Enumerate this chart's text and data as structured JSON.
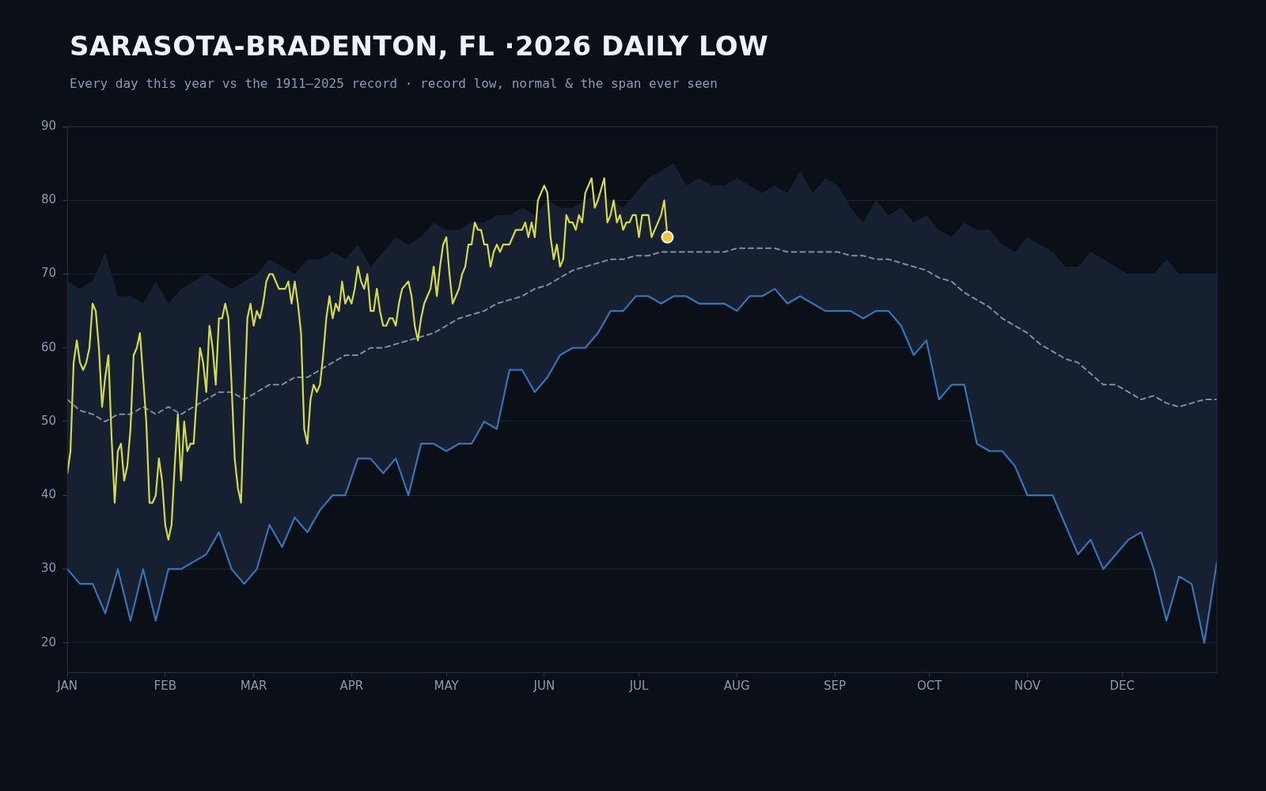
{
  "chart_data": {
    "type": "line",
    "title": "SARASOTA-BRADENTON, FL ·2026 DAILY LOW",
    "subtitle": "Every day this year vs the 1911–2025 record · record low, normal & the span ever seen",
    "xlim": [
      "2026-01-01",
      "2026-12-31"
    ],
    "xticks": [
      {
        "value": "2026-01-01",
        "label": "JAN"
      },
      {
        "value": "2026-02-01",
        "label": "FEB"
      },
      {
        "value": "2026-03-01",
        "label": "MAR"
      },
      {
        "value": "2026-04-01",
        "label": "APR"
      },
      {
        "value": "2026-05-01",
        "label": "MAY"
      },
      {
        "value": "2026-06-01",
        "label": "JUN"
      },
      {
        "value": "2026-07-01",
        "label": "JUL"
      },
      {
        "value": "2026-08-01",
        "label": "AUG"
      },
      {
        "value": "2026-09-01",
        "label": "SEP"
      },
      {
        "value": "2026-10-01",
        "label": "OCT"
      },
      {
        "value": "2026-11-01",
        "label": "NOV"
      },
      {
        "value": "2026-12-01",
        "label": "DEC"
      }
    ],
    "ylim": [
      16,
      90
    ],
    "yticks": [
      20,
      30,
      40,
      50,
      60,
      70,
      80,
      90
    ],
    "grid": "y",
    "legend": false,
    "marker": "none",
    "x": [
      "2026-01-01",
      "2026-01-05",
      "2026-01-09",
      "2026-01-13",
      "2026-01-17",
      "2026-01-21",
      "2026-01-25",
      "2026-01-29",
      "2026-02-02",
      "2026-02-06",
      "2026-02-10",
      "2026-02-14",
      "2026-02-18",
      "2026-02-22",
      "2026-02-26",
      "2026-03-02",
      "2026-03-06",
      "2026-03-10",
      "2026-03-14",
      "2026-03-18",
      "2026-03-22",
      "2026-03-26",
      "2026-03-30",
      "2026-04-03",
      "2026-04-07",
      "2026-04-11",
      "2026-04-15",
      "2026-04-19",
      "2026-04-23",
      "2026-04-27",
      "2026-05-01",
      "2026-05-05",
      "2026-05-09",
      "2026-05-13",
      "2026-05-17",
      "2026-05-21",
      "2026-05-25",
      "2026-05-29",
      "2026-06-02",
      "2026-06-06",
      "2026-06-10",
      "2026-06-14",
      "2026-06-18",
      "2026-06-22",
      "2026-06-26",
      "2026-06-30",
      "2026-07-04",
      "2026-07-08",
      "2026-07-12",
      "2026-07-16",
      "2026-07-20",
      "2026-07-24",
      "2026-07-28",
      "2026-08-01",
      "2026-08-05",
      "2026-08-09",
      "2026-08-13",
      "2026-08-17",
      "2026-08-21",
      "2026-08-25",
      "2026-08-29",
      "2026-09-02",
      "2026-09-06",
      "2026-09-10",
      "2026-09-14",
      "2026-09-18",
      "2026-09-22",
      "2026-09-26",
      "2026-09-30",
      "2026-10-04",
      "2026-10-08",
      "2026-10-12",
      "2026-10-16",
      "2026-10-20",
      "2026-10-24",
      "2026-10-28",
      "2026-11-01",
      "2026-11-05",
      "2026-11-09",
      "2026-11-13",
      "2026-11-17",
      "2026-11-21",
      "2026-11-25",
      "2026-11-29",
      "2026-12-03",
      "2026-12-07",
      "2026-12-11",
      "2026-12-15",
      "2026-12-19",
      "2026-12-23",
      "2026-12-27",
      "2026-12-31"
    ],
    "series": [
      {
        "type": "line",
        "color": "#7d8ea6",
        "line_style": "dashed",
        "values": [
          53,
          51.5,
          51,
          50,
          51,
          51,
          52,
          51,
          52,
          51,
          52,
          53,
          54,
          54,
          53,
          54,
          55,
          55,
          56,
          56,
          57,
          58,
          59,
          59,
          60,
          60,
          60.5,
          61,
          61.5,
          62,
          63,
          64,
          64.5,
          65,
          66,
          66.5,
          67,
          68,
          68.5,
          69.5,
          70.5,
          71,
          71.5,
          72,
          72,
          72.5,
          72.5,
          73,
          73,
          73,
          73,
          73,
          73,
          73.5,
          73.5,
          73.5,
          73.5,
          73,
          73,
          73,
          73,
          73,
          72.5,
          72.5,
          72,
          72,
          71.5,
          71,
          70.5,
          69.5,
          69,
          67.5,
          66.5,
          65.5,
          64,
          63,
          62,
          60.5,
          59.5,
          58.5,
          58,
          56.5,
          55,
          55,
          54,
          53,
          53.5,
          52.5,
          52,
          52.5,
          53,
          53
        ],
        "lower": [
          30,
          28,
          28,
          24,
          30,
          23,
          30,
          23,
          30,
          30,
          31,
          32,
          35,
          30,
          28,
          30,
          36,
          33,
          37,
          35,
          38,
          40,
          40,
          45,
          45,
          43,
          45,
          40,
          47,
          47,
          46,
          47,
          47,
          50,
          49,
          57,
          57,
          54,
          56,
          59,
          60,
          60,
          62,
          65,
          65,
          67,
          67,
          66,
          67,
          67,
          66,
          66,
          66,
          65,
          67,
          67,
          68,
          66,
          67,
          66,
          65,
          65,
          65,
          64,
          65,
          65,
          63,
          59,
          61,
          53,
          55,
          55,
          47,
          46,
          46,
          44,
          40,
          40,
          40,
          36,
          32,
          34,
          30,
          32,
          34,
          35,
          30,
          23,
          29,
          28,
          20,
          31
        ],
        "upper": [
          69,
          68,
          69,
          73,
          67,
          67,
          66,
          69,
          66,
          68,
          69,
          70,
          69,
          68,
          69,
          70,
          72,
          71,
          70,
          72,
          72,
          73,
          72,
          74,
          71,
          73,
          75,
          74,
          75,
          77,
          76,
          76,
          77,
          77,
          78,
          78,
          79,
          78,
          80,
          79,
          79,
          80,
          81,
          80,
          79,
          81,
          83,
          84,
          85,
          82,
          83,
          82,
          82,
          83,
          82,
          81,
          82,
          81,
          84,
          81,
          83,
          82,
          79,
          77,
          80,
          78,
          79,
          77,
          78,
          76,
          75,
          77,
          76,
          76,
          74,
          73,
          75,
          74,
          73,
          71,
          71,
          73,
          72,
          71,
          70,
          70,
          70,
          72,
          70,
          70,
          70,
          70
        ]
      },
      {
        "type": "line",
        "color": "#3474b8",
        "values": [
          30,
          28,
          28,
          24,
          30,
          23,
          30,
          23,
          30,
          30,
          31,
          32,
          35,
          30,
          28,
          30,
          36,
          33,
          37,
          35,
          38,
          40,
          40,
          45,
          45,
          43,
          45,
          40,
          47,
          47,
          46,
          47,
          47,
          50,
          49,
          57,
          57,
          54,
          56,
          59,
          60,
          60,
          62,
          65,
          65,
          67,
          67,
          66,
          67,
          67,
          66,
          66,
          66,
          65,
          67,
          67,
          68,
          66,
          67,
          66,
          65,
          65,
          65,
          64,
          65,
          65,
          63,
          59,
          61,
          53,
          55,
          55,
          47,
          46,
          46,
          44,
          40,
          40,
          40,
          36,
          32,
          34,
          30,
          32,
          34,
          35,
          30,
          23,
          29,
          28,
          20,
          31
        ]
      },
      {
        "type": "line",
        "color": "#d4dc45",
        "x": [
          "2026-01-01",
          "2026-01-02",
          "2026-01-03",
          "2026-01-04",
          "2026-01-05",
          "2026-01-06",
          "2026-01-07",
          "2026-01-08",
          "2026-01-09",
          "2026-01-10",
          "2026-01-11",
          "2026-01-12",
          "2026-01-13",
          "2026-01-14",
          "2026-01-15",
          "2026-01-16",
          "2026-01-17",
          "2026-01-18",
          "2026-01-19",
          "2026-01-20",
          "2026-01-21",
          "2026-01-22",
          "2026-01-23",
          "2026-01-24",
          "2026-01-26",
          "2026-01-27",
          "2026-01-28",
          "2026-01-29",
          "2026-01-30",
          "2026-01-31",
          "2026-02-01",
          "2026-02-02",
          "2026-02-03",
          "2026-02-04",
          "2026-02-05",
          "2026-02-06",
          "2026-02-07",
          "2026-02-08",
          "2026-02-09",
          "2026-02-10",
          "2026-02-12",
          "2026-02-13",
          "2026-02-14",
          "2026-02-15",
          "2026-02-16",
          "2026-02-17",
          "2026-02-18",
          "2026-02-19",
          "2026-02-20",
          "2026-02-21",
          "2026-02-22",
          "2026-02-23",
          "2026-02-24",
          "2026-02-25",
          "2026-02-26",
          "2026-02-27",
          "2026-02-28",
          "2026-03-01",
          "2026-03-02",
          "2026-03-03",
          "2026-03-04",
          "2026-03-05",
          "2026-03-06",
          "2026-03-07",
          "2026-03-09",
          "2026-03-11",
          "2026-03-12",
          "2026-03-13",
          "2026-03-14",
          "2026-03-15",
          "2026-03-16",
          "2026-03-17",
          "2026-03-18",
          "2026-03-19",
          "2026-03-20",
          "2026-03-21",
          "2026-03-22",
          "2026-03-23",
          "2026-03-24",
          "2026-03-25",
          "2026-03-26",
          "2026-03-27",
          "2026-03-28",
          "2026-03-29",
          "2026-03-30",
          "2026-03-31",
          "2026-04-01",
          "2026-04-02",
          "2026-04-03",
          "2026-04-04",
          "2026-04-05",
          "2026-04-06",
          "2026-04-07",
          "2026-04-08",
          "2026-04-09",
          "2026-04-10",
          "2026-04-11",
          "2026-04-12",
          "2026-04-13",
          "2026-04-14",
          "2026-04-15",
          "2026-04-16",
          "2026-04-17",
          "2026-04-19",
          "2026-04-20",
          "2026-04-21",
          "2026-04-22",
          "2026-04-23",
          "2026-04-24",
          "2026-04-25",
          "2026-04-26",
          "2026-04-27",
          "2026-04-28",
          "2026-04-29",
          "2026-04-30",
          "2026-05-01",
          "2026-05-02",
          "2026-05-03",
          "2026-05-04",
          "2026-05-05",
          "2026-05-06",
          "2026-05-07",
          "2026-05-08",
          "2026-05-09",
          "2026-05-10",
          "2026-05-11",
          "2026-05-12",
          "2026-05-13",
          "2026-05-14",
          "2026-05-15",
          "2026-05-16",
          "2026-05-17",
          "2026-05-18",
          "2026-05-19",
          "2026-05-21",
          "2026-05-23",
          "2026-05-25",
          "2026-05-26",
          "2026-05-27",
          "2026-05-28",
          "2026-05-29",
          "2026-05-30",
          "2026-06-01",
          "2026-06-02",
          "2026-06-03",
          "2026-06-04",
          "2026-06-05",
          "2026-06-06",
          "2026-06-07",
          "2026-06-08",
          "2026-06-09",
          "2026-06-10",
          "2026-06-11",
          "2026-06-12",
          "2026-06-13",
          "2026-06-14",
          "2026-06-16",
          "2026-06-17",
          "2026-06-18",
          "2026-06-20",
          "2026-06-21",
          "2026-06-22",
          "2026-06-23",
          "2026-06-24",
          "2026-06-25",
          "2026-06-26",
          "2026-06-27",
          "2026-06-28",
          "2026-06-29",
          "2026-06-30",
          "2026-07-01",
          "2026-07-02",
          "2026-07-04",
          "2026-07-05",
          "2026-07-08",
          "2026-07-09",
          "2026-07-10"
        ],
        "values": [
          43,
          46,
          58,
          61,
          58,
          57,
          58,
          60,
          66,
          65,
          60,
          52,
          56,
          59,
          48,
          39,
          46,
          47,
          42,
          44,
          49,
          59,
          60,
          62,
          50,
          39,
          39,
          40,
          45,
          42,
          36,
          34,
          36,
          44,
          51,
          42,
          50,
          46,
          47,
          47,
          60,
          58,
          54,
          63,
          60,
          55,
          64,
          64,
          66,
          64,
          55,
          45,
          41,
          39,
          52,
          64,
          66,
          63,
          65,
          64,
          66,
          69,
          70,
          70,
          68,
          68,
          69,
          66,
          69,
          66,
          62,
          49,
          47,
          53,
          55,
          54,
          55,
          59,
          64,
          67,
          64,
          66,
          65,
          69,
          66,
          67,
          66,
          68,
          71,
          69,
          68,
          70,
          65,
          65,
          68,
          65,
          63,
          63,
          64,
          64,
          63,
          66,
          68,
          69,
          67,
          63,
          61,
          64,
          66,
          67,
          68,
          71,
          67,
          71,
          74,
          75,
          70,
          66,
          67,
          68,
          70,
          71,
          74,
          74,
          77,
          76,
          76,
          74,
          74,
          71,
          73,
          74,
          73,
          74,
          74,
          76,
          76,
          77,
          75,
          77,
          75,
          80,
          82,
          81,
          75,
          72,
          74,
          71,
          72,
          78,
          77,
          77,
          76,
          78,
          77,
          81,
          83,
          79,
          80,
          83,
          77,
          78,
          80,
          77,
          78,
          76,
          77,
          77,
          78,
          78,
          75,
          78,
          78,
          75,
          78,
          80,
          75
        ]
      },
      {
        "type": "scatter",
        "color": "#f2c53d",
        "marker": "circle",
        "x": [
          "2026-07-10"
        ],
        "values": [
          75
        ]
      }
    ]
  }
}
